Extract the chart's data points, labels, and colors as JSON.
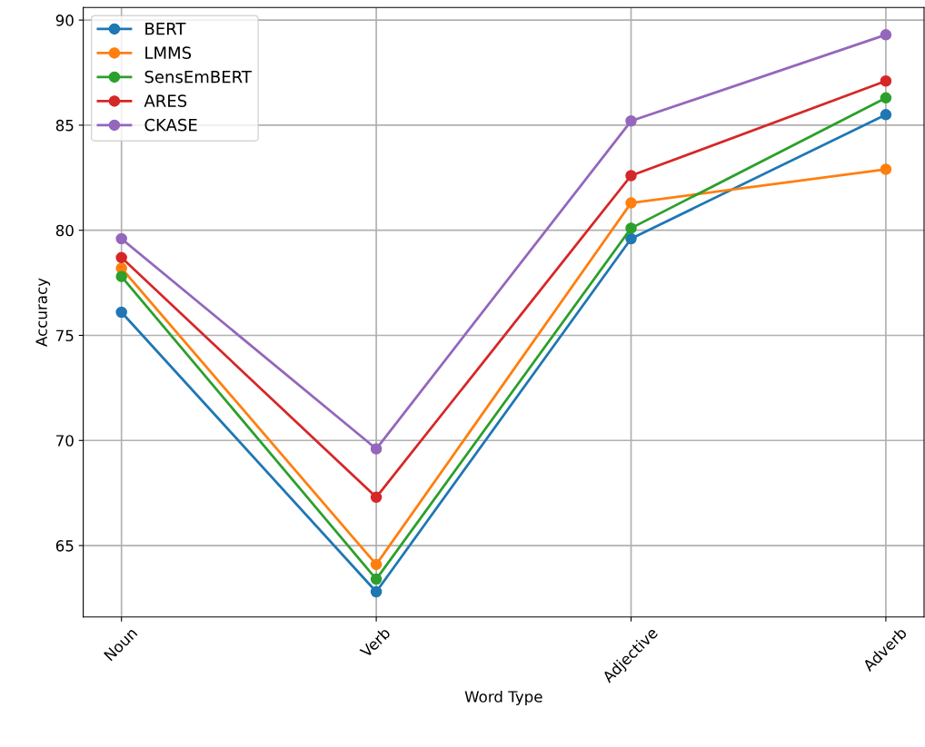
{
  "chart_data": {
    "type": "line",
    "xlabel": "Word Type",
    "ylabel": "Accuracy",
    "categories": [
      "Noun",
      "Verb",
      "Adjective",
      "Adverb"
    ],
    "series": [
      {
        "name": "BERT",
        "color": "#1f77b4",
        "values": [
          76.1,
          62.8,
          79.6,
          85.5
        ]
      },
      {
        "name": "LMMS",
        "color": "#ff7f0e",
        "values": [
          78.2,
          64.1,
          81.3,
          82.9
        ]
      },
      {
        "name": "SensEmBERT",
        "color": "#2ca02c",
        "values": [
          77.8,
          63.4,
          80.1,
          86.3
        ]
      },
      {
        "name": "ARES",
        "color": "#d62728",
        "values": [
          78.7,
          67.3,
          82.6,
          87.1
        ]
      },
      {
        "name": "CKASE",
        "color": "#9467bd",
        "values": [
          79.6,
          69.6,
          85.2,
          89.3
        ]
      }
    ],
    "ylim": [
      61.6,
      90.6
    ],
    "yticks": [
      65,
      70,
      75,
      80,
      85,
      90
    ],
    "grid": true,
    "legend": "top left",
    "marker": "circle",
    "line_style": "solid"
  }
}
